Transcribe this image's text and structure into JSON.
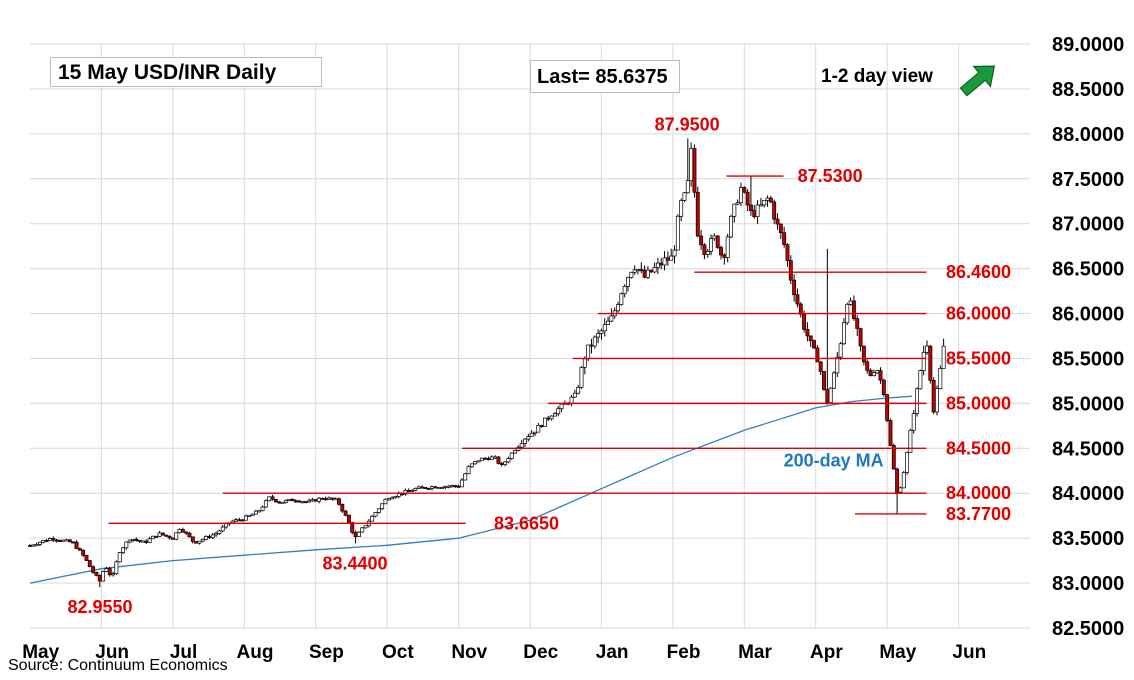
{
  "title": "15 May  USD/INR  Daily",
  "last_label": "Last= 85.6375",
  "view_label": "1-2 day view",
  "view_icon": "arrow-up-right-icon",
  "source": "Source: Continuum Economics",
  "colors": {
    "candle_up": "#ffffff",
    "candle_down": "#c00000",
    "level_line": "#e00000",
    "level_text": "#e00000",
    "ma_line": "#2f7fc1",
    "ma_text": "#1f77c4",
    "grid": "#d9d9d9",
    "arrow": "#1a9a3a"
  },
  "chart_data": {
    "type": "candlestick",
    "title": "15 May  USD/INR  Daily",
    "x_tick_labels": [
      "May",
      "Jun",
      "Jul",
      "Aug",
      "Sep",
      "Oct",
      "Nov",
      "Dec",
      "Jan",
      "Feb",
      "Mar",
      "Apr",
      "May",
      "Jun"
    ],
    "x_month_starts": [
      0,
      1,
      2,
      3,
      4,
      5,
      6,
      7,
      8,
      9,
      10,
      11,
      12,
      13
    ],
    "x_range": [
      0,
      14
    ],
    "ylim": [
      82.5,
      89.0
    ],
    "y_tick_labels": [
      "89.0000",
      "88.5000",
      "88.0000",
      "87.5000",
      "87.0000",
      "86.5000",
      "86.0000",
      "85.5000",
      "85.0000",
      "84.5000",
      "84.0000",
      "83.5000",
      "83.0000",
      "82.5000"
    ],
    "y_tick_values": [
      89.0,
      88.5,
      88.0,
      87.5,
      87.0,
      86.5,
      86.0,
      85.5,
      85.0,
      84.5,
      84.0,
      83.5,
      83.0,
      82.5
    ],
    "y_axis_position": "right",
    "grid": true,
    "legend": "none",
    "last": 85.6375,
    "levels": [
      {
        "label": "87.9500",
        "value": 87.95,
        "kind": "peak",
        "x_center": 9.2
      },
      {
        "label": "87.5300",
        "value": 87.53,
        "kind": "line",
        "x_from": 9.75,
        "x_to": 10.55
      },
      {
        "label": "86.4600",
        "value": 86.46,
        "kind": "line",
        "x_from": 9.3,
        "x_to": 12.55
      },
      {
        "label": "86.0000",
        "value": 86.0,
        "kind": "line",
        "x_from": 7.95,
        "x_to": 12.55
      },
      {
        "label": "85.5000",
        "value": 85.5,
        "kind": "line",
        "x_from": 7.6,
        "x_to": 12.55
      },
      {
        "label": "85.0000",
        "value": 85.0,
        "kind": "line",
        "x_from": 7.25,
        "x_to": 12.55
      },
      {
        "label": "84.5000",
        "value": 84.5,
        "kind": "line",
        "x_from": 6.05,
        "x_to": 12.55
      },
      {
        "label": "84.0000",
        "value": 84.0,
        "kind": "line",
        "x_from": 2.7,
        "x_to": 12.55
      },
      {
        "label": "83.7700",
        "value": 83.77,
        "kind": "line",
        "x_from": 11.55,
        "x_to": 12.55
      },
      {
        "label": "83.6650",
        "value": 83.665,
        "kind": "line",
        "x_from": 1.1,
        "x_to": 6.1
      },
      {
        "label": "83.4400",
        "value": 83.44,
        "kind": "trough",
        "x_center": 4.55
      },
      {
        "label": "82.9550",
        "value": 82.955,
        "kind": "trough",
        "x_center": 0.98
      }
    ],
    "moving_average": {
      "name": "200-day MA",
      "points": [
        [
          0,
          83.0
        ],
        [
          1,
          83.16
        ],
        [
          2,
          83.25
        ],
        [
          3,
          83.31
        ],
        [
          4,
          83.37
        ],
        [
          5,
          83.42
        ],
        [
          6,
          83.5
        ],
        [
          7,
          83.7
        ],
        [
          8,
          84.05
        ],
        [
          9,
          84.4
        ],
        [
          10,
          84.7
        ],
        [
          11,
          84.95
        ],
        [
          11.5,
          85.02
        ],
        [
          12,
          85.06
        ],
        [
          12.35,
          85.08
        ]
      ]
    },
    "price_path": [
      [
        0.0,
        83.42
      ],
      [
        0.3,
        83.5
      ],
      [
        0.6,
        83.45
      ],
      [
        0.75,
        83.3
      ],
      [
        0.9,
        83.1
      ],
      [
        0.98,
        83.02
      ],
      [
        1.05,
        83.2
      ],
      [
        1.15,
        83.05
      ],
      [
        1.25,
        83.35
      ],
      [
        1.4,
        83.5
      ],
      [
        1.6,
        83.45
      ],
      [
        1.8,
        83.55
      ],
      [
        2.0,
        83.5
      ],
      [
        2.1,
        83.62
      ],
      [
        2.3,
        83.45
      ],
      [
        2.6,
        83.55
      ],
      [
        2.8,
        83.68
      ],
      [
        3.0,
        83.72
      ],
      [
        3.2,
        83.8
      ],
      [
        3.35,
        83.95
      ],
      [
        3.5,
        83.9
      ],
      [
        3.7,
        83.93
      ],
      [
        3.9,
        83.9
      ],
      [
        4.1,
        83.95
      ],
      [
        4.3,
        83.92
      ],
      [
        4.45,
        83.7
      ],
      [
        4.55,
        83.5
      ],
      [
        4.7,
        83.65
      ],
      [
        4.85,
        83.8
      ],
      [
        5.0,
        83.95
      ],
      [
        5.2,
        84.0
      ],
      [
        5.4,
        84.05
      ],
      [
        5.6,
        84.07
      ],
      [
        5.8,
        84.08
      ],
      [
        6.0,
        84.08
      ],
      [
        6.15,
        84.3
      ],
      [
        6.3,
        84.38
      ],
      [
        6.5,
        84.4
      ],
      [
        6.6,
        84.3
      ],
      [
        6.75,
        84.45
      ],
      [
        6.9,
        84.6
      ],
      [
        7.1,
        84.72
      ],
      [
        7.3,
        84.88
      ],
      [
        7.5,
        85.0
      ],
      [
        7.65,
        85.1
      ],
      [
        7.75,
        85.5
      ],
      [
        7.85,
        85.65
      ],
      [
        8.0,
        85.8
      ],
      [
        8.15,
        85.95
      ],
      [
        8.3,
        86.3
      ],
      [
        8.45,
        86.55
      ],
      [
        8.6,
        86.4
      ],
      [
        8.75,
        86.5
      ],
      [
        8.9,
        86.6
      ],
      [
        9.0,
        86.62
      ],
      [
        9.1,
        87.2
      ],
      [
        9.2,
        87.35
      ],
      [
        9.25,
        87.85
      ],
      [
        9.35,
        86.9
      ],
      [
        9.45,
        86.7
      ],
      [
        9.6,
        86.85
      ],
      [
        9.7,
        86.6
      ],
      [
        9.8,
        87.0
      ],
      [
        9.95,
        87.4
      ],
      [
        10.1,
        87.1
      ],
      [
        10.25,
        87.2
      ],
      [
        10.35,
        87.3
      ],
      [
        10.45,
        87.0
      ],
      [
        10.55,
        86.8
      ],
      [
        10.65,
        86.4
      ],
      [
        10.8,
        85.95
      ],
      [
        10.95,
        85.6
      ],
      [
        11.05,
        85.45
      ],
      [
        11.15,
        84.98
      ],
      [
        11.25,
        85.3
      ],
      [
        11.35,
        85.7
      ],
      [
        11.45,
        86.2
      ],
      [
        11.55,
        85.9
      ],
      [
        11.65,
        85.5
      ],
      [
        11.75,
        85.3
      ],
      [
        11.85,
        85.4
      ],
      [
        11.95,
        85.15
      ],
      [
        12.05,
        84.5
      ],
      [
        12.15,
        83.95
      ],
      [
        12.25,
        84.3
      ],
      [
        12.35,
        84.8
      ],
      [
        12.45,
        85.3
      ],
      [
        12.55,
        85.75
      ],
      [
        12.65,
        84.9
      ],
      [
        12.75,
        85.4
      ],
      [
        12.8,
        85.6375
      ]
    ],
    "spikes": [
      {
        "x": 9.22,
        "high": 87.95
      },
      {
        "x": 10.1,
        "high": 87.53
      },
      {
        "x": 11.18,
        "high": 86.72
      },
      {
        "x": 12.12,
        "low": 83.77
      },
      {
        "x": 4.55,
        "low": 83.44
      },
      {
        "x": 0.98,
        "low": 82.955
      }
    ]
  }
}
